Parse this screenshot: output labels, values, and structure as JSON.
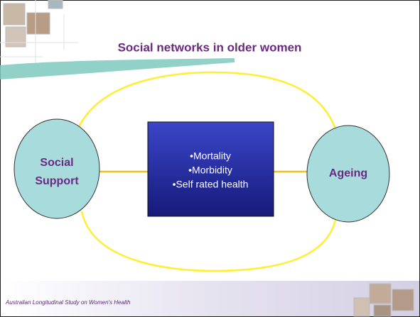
{
  "title": "Social networks in older women",
  "nodes": [
    {
      "label": [
        "Social",
        "Support"
      ]
    },
    {
      "items": [
        "•Mortality",
        "•Morbidity",
        "•Self rated health"
      ]
    },
    {
      "label": [
        "Ageing"
      ]
    }
  ],
  "footer": "Australian Longitudinal Study on Women's Health"
}
